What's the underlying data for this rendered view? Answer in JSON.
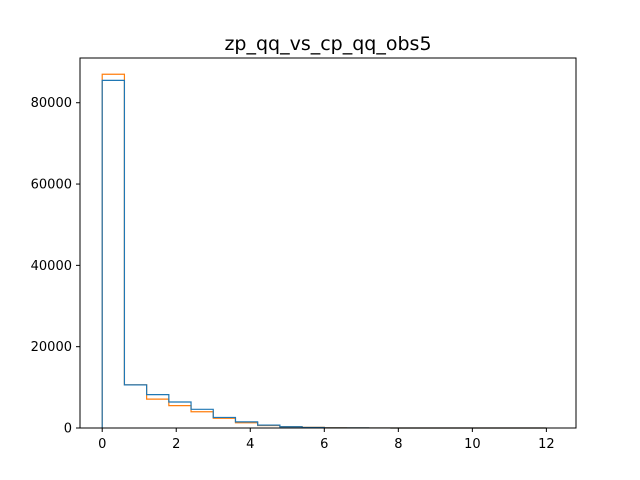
{
  "chart_data": {
    "type": "histogram",
    "title": "zp_qq_vs_cp_qq_obs5",
    "xlabel": "",
    "ylabel": "",
    "xlim": [
      -0.6,
      12.8
    ],
    "ylim": [
      0,
      91000
    ],
    "bin_edges": [
      0.0,
      0.6,
      1.2,
      1.8,
      2.4,
      3.0,
      3.6,
      4.2,
      4.8,
      5.4,
      6.0,
      6.6,
      7.2,
      7.8,
      8.4,
      9.0,
      9.6,
      10.2,
      10.8,
      11.4,
      12.0
    ],
    "series": [
      {
        "color": "#ff7f0e",
        "values": [
          87000,
          10600,
          7100,
          5500,
          4000,
          2400,
          1300,
          600,
          350,
          150,
          60,
          30,
          15,
          8,
          4,
          2,
          1,
          1,
          0,
          0
        ]
      },
      {
        "color": "#1f77b4",
        "values": [
          85500,
          10600,
          8200,
          6400,
          4600,
          2600,
          1500,
          700,
          300,
          120,
          50,
          25,
          12,
          6,
          3,
          2,
          1,
          1,
          0,
          0
        ]
      }
    ],
    "x_ticks": [
      0,
      2,
      4,
      6,
      8,
      10,
      12
    ],
    "y_ticks": [
      0,
      20000,
      40000,
      60000,
      80000
    ],
    "grid": false,
    "legend": "none"
  }
}
